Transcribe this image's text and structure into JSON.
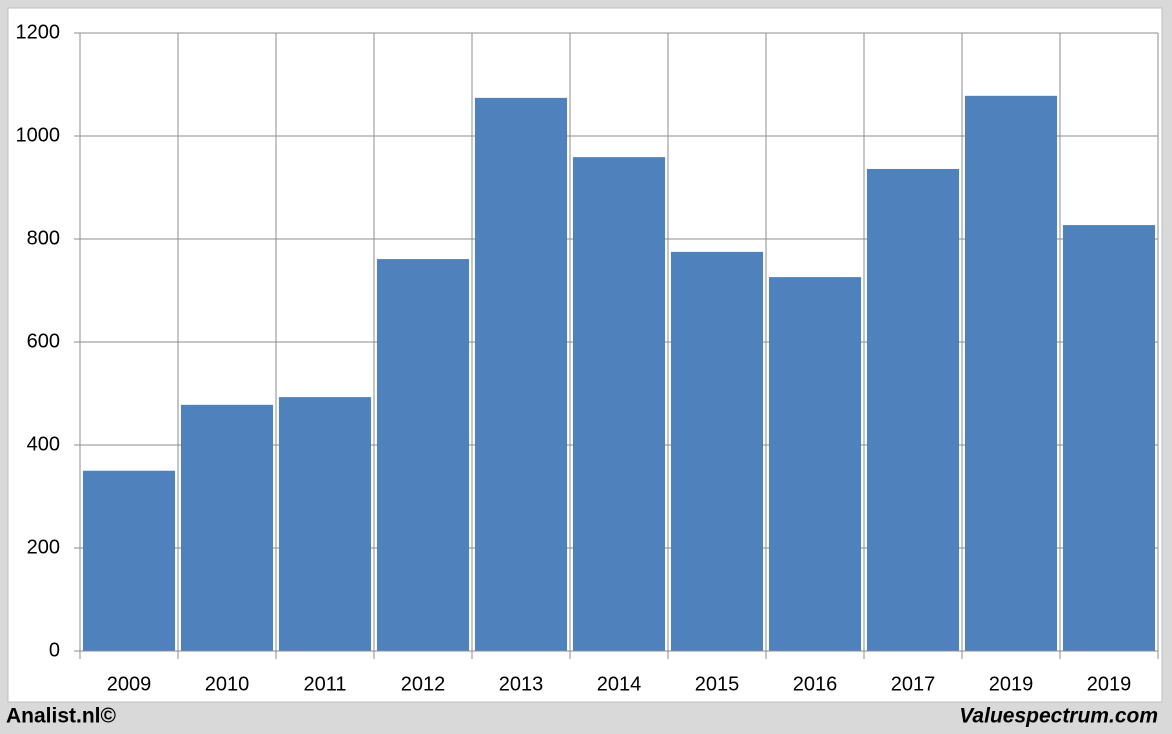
{
  "chart_data": {
    "type": "bar",
    "categories": [
      "2009",
      "2010",
      "2011",
      "2012",
      "2013",
      "2014",
      "2015",
      "2016",
      "2017",
      "2019",
      "2019"
    ],
    "values": [
      350,
      478,
      493,
      761,
      1074,
      959,
      775,
      726,
      936,
      1078,
      827
    ],
    "color": "#4f81bd",
    "ylim": [
      0,
      1200
    ],
    "yticks": [
      0,
      200,
      400,
      600,
      800,
      1000,
      1200
    ],
    "grid": true,
    "footer_left": "Analist.nl©",
    "footer_right": "Valuespectrum.com"
  }
}
